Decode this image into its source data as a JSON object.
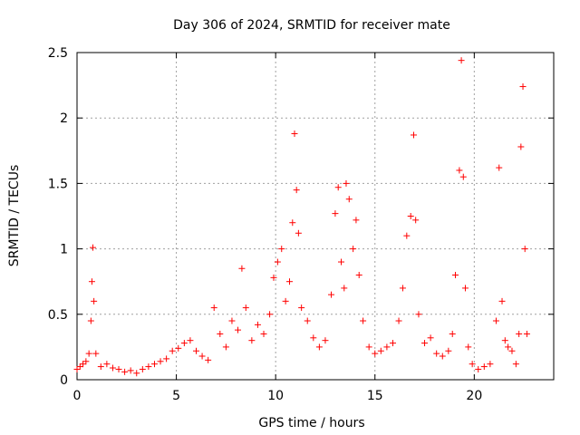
{
  "chart_data": {
    "type": "scatter",
    "title": "Day 306 of 2024, SRMTID for receiver mate",
    "xlabel": "GPS time / hours",
    "ylabel": "SRMTID / TECUs",
    "xlim": [
      0,
      24
    ],
    "ylim": [
      0,
      2.5
    ],
    "x_ticks": [
      0,
      5,
      10,
      15,
      20
    ],
    "y_ticks": [
      0,
      0.5,
      1,
      1.5,
      2,
      2.5
    ],
    "x_tick_labels": [
      "0",
      "5",
      "10",
      "15",
      "20"
    ],
    "y_tick_labels": [
      "0",
      "0.5",
      "1",
      "1.5",
      "2",
      "2.5"
    ],
    "grid": true,
    "marker": "+",
    "color": "#ff0000",
    "series": [
      {
        "name": "SRMTID",
        "x": [
          0.0,
          0.15,
          0.3,
          0.45,
          0.6,
          0.7,
          0.75,
          0.8,
          0.85,
          0.95,
          1.2,
          1.5,
          1.8,
          2.1,
          2.4,
          2.7,
          3.0,
          3.3,
          3.6,
          3.9,
          4.2,
          4.5,
          4.8,
          5.1,
          5.4,
          5.7,
          6.0,
          6.3,
          6.6,
          6.9,
          7.2,
          7.5,
          7.8,
          8.1,
          8.3,
          8.5,
          8.8,
          9.1,
          9.4,
          9.7,
          9.9,
          10.1,
          10.3,
          10.5,
          10.7,
          10.85,
          10.95,
          11.05,
          11.15,
          11.3,
          11.6,
          11.9,
          12.2,
          12.5,
          12.8,
          13.0,
          13.15,
          13.3,
          13.45,
          13.55,
          13.7,
          13.9,
          14.05,
          14.2,
          14.4,
          14.7,
          15.0,
          15.3,
          15.6,
          15.9,
          16.2,
          16.4,
          16.6,
          16.8,
          16.95,
          17.05,
          17.2,
          17.5,
          17.8,
          18.1,
          18.4,
          18.7,
          18.9,
          19.05,
          19.25,
          19.35,
          19.45,
          19.55,
          19.7,
          19.9,
          20.2,
          20.5,
          20.8,
          21.1,
          21.25,
          21.4,
          21.55,
          21.7,
          21.9,
          22.1,
          22.25,
          22.35,
          22.45,
          22.55,
          22.65
        ],
        "y": [
          0.08,
          0.1,
          0.12,
          0.14,
          0.2,
          0.45,
          0.75,
          1.01,
          0.6,
          0.2,
          0.1,
          0.12,
          0.09,
          0.08,
          0.06,
          0.07,
          0.05,
          0.08,
          0.1,
          0.12,
          0.14,
          0.16,
          0.22,
          0.24,
          0.28,
          0.3,
          0.22,
          0.18,
          0.15,
          0.55,
          0.35,
          0.25,
          0.45,
          0.38,
          0.85,
          0.55,
          0.3,
          0.42,
          0.35,
          0.5,
          0.78,
          0.9,
          1.0,
          0.6,
          0.75,
          1.2,
          1.88,
          1.45,
          1.12,
          0.55,
          0.45,
          0.32,
          0.25,
          0.3,
          0.65,
          1.27,
          1.47,
          0.9,
          0.7,
          1.5,
          1.38,
          1.0,
          1.22,
          0.8,
          0.45,
          0.25,
          0.2,
          0.22,
          0.25,
          0.28,
          0.45,
          0.7,
          1.1,
          1.25,
          1.87,
          1.22,
          0.5,
          0.28,
          0.32,
          0.2,
          0.18,
          0.22,
          0.35,
          0.8,
          1.6,
          2.44,
          1.55,
          0.7,
          0.25,
          0.12,
          0.08,
          0.1,
          0.12,
          0.45,
          1.62,
          0.6,
          0.3,
          0.25,
          0.22,
          0.12,
          0.35,
          1.78,
          2.24,
          1.0,
          0.35
        ]
      }
    ]
  }
}
